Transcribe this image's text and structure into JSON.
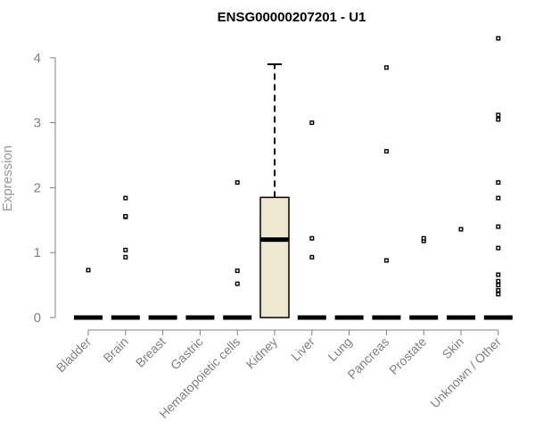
{
  "chart_data": {
    "type": "boxplot",
    "title": "ENSG00000207201 - U1",
    "ylabel": "Expression",
    "xlabel": "",
    "ylim": [
      0,
      4.4
    ],
    "yticks": [
      0,
      1,
      2,
      3,
      4
    ],
    "categories": [
      "Bladder",
      "Brain",
      "Breast",
      "Gastric",
      "Hematopoietic cells",
      "Kidney",
      "Liver",
      "Lung",
      "Pancreas",
      "Prostate",
      "Skin",
      "Unknown / Other"
    ],
    "boxes": [
      {
        "category": "Bladder",
        "min": 0,
        "q1": 0,
        "median": 0,
        "q3": 0,
        "max": 0,
        "outliers": [
          0.73
        ]
      },
      {
        "category": "Brain",
        "min": 0,
        "q1": 0,
        "median": 0,
        "q3": 0,
        "max": 0,
        "outliers": [
          0.93,
          1.04,
          1.55,
          1.56,
          1.84
        ]
      },
      {
        "category": "Breast",
        "min": 0,
        "q1": 0,
        "median": 0,
        "q3": 0,
        "max": 0,
        "outliers": []
      },
      {
        "category": "Gastric",
        "min": 0,
        "q1": 0,
        "median": 0,
        "q3": 0,
        "max": 0,
        "outliers": []
      },
      {
        "category": "Hematopoietic cells",
        "min": 0,
        "q1": 0,
        "median": 0,
        "q3": 0,
        "max": 0,
        "outliers": [
          0.52,
          0.72,
          2.08
        ]
      },
      {
        "category": "Kidney",
        "min": 0,
        "q1": 0,
        "median": 1.2,
        "q3": 1.85,
        "max": 3.9,
        "outliers": []
      },
      {
        "category": "Liver",
        "min": 0,
        "q1": 0,
        "median": 0,
        "q3": 0,
        "max": 0,
        "outliers": [
          0.93,
          1.22,
          3.0
        ]
      },
      {
        "category": "Lung",
        "min": 0,
        "q1": 0,
        "median": 0,
        "q3": 0,
        "max": 0,
        "outliers": []
      },
      {
        "category": "Pancreas",
        "min": 0,
        "q1": 0,
        "median": 0,
        "q3": 0,
        "max": 0,
        "outliers": [
          0.88,
          2.56,
          3.85
        ]
      },
      {
        "category": "Prostate",
        "min": 0,
        "q1": 0,
        "median": 0,
        "q3": 0,
        "max": 0,
        "outliers": [
          1.18,
          1.22
        ]
      },
      {
        "category": "Skin",
        "min": 0,
        "q1": 0,
        "median": 0,
        "q3": 0,
        "max": 0,
        "outliers": [
          1.36
        ]
      },
      {
        "category": "Unknown / Other",
        "min": 0,
        "q1": 0,
        "median": 0,
        "q3": 0,
        "max": 0,
        "outliers": [
          0.36,
          0.42,
          0.5,
          0.56,
          0.66,
          1.07,
          1.4,
          1.84,
          2.08,
          3.05,
          3.12,
          4.3
        ]
      }
    ],
    "box_fill": "#EEE8D0",
    "grid": false,
    "legend": "none"
  }
}
